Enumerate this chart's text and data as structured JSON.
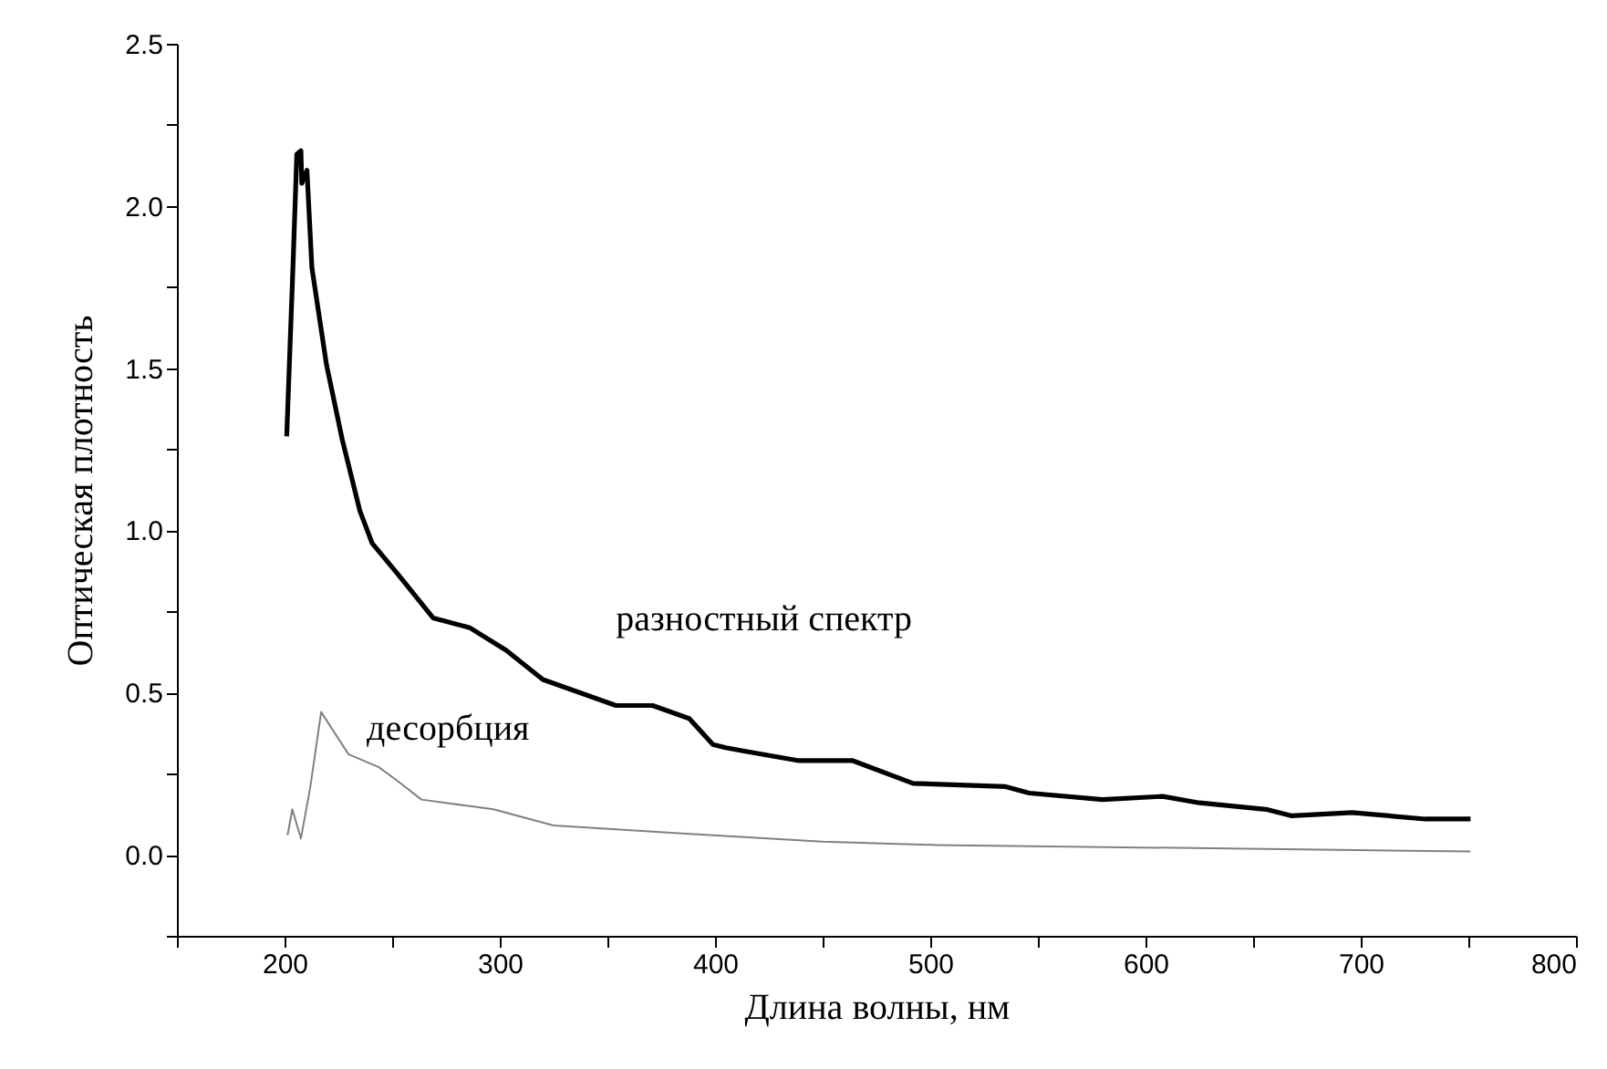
{
  "chart_data": {
    "type": "line",
    "xlabel": "Длина волны, нм",
    "ylabel": "Оптическая плотность",
    "xlim": [
      150,
      800
    ],
    "ylim": [
      -0.25,
      2.5
    ],
    "xticks": [
      {
        "value": 150,
        "label": null
      },
      200,
      {
        "value": 250,
        "label": null
      },
      300,
      {
        "value": 350,
        "label": null
      },
      400,
      {
        "value": 450,
        "label": null
      },
      500,
      {
        "value": 550,
        "label": null
      },
      600,
      {
        "value": 650,
        "label": null
      },
      700,
      {
        "value": 750,
        "label": null
      },
      800
    ],
    "yticks": [
      {
        "value": -0.25,
        "label": null
      },
      {
        "value": 0,
        "label": "0.0"
      },
      {
        "value": 0.25,
        "label": null
      },
      {
        "value": 0.5,
        "label": "0.5"
      },
      {
        "value": 0.75,
        "label": null
      },
      {
        "value": 1,
        "label": "1.0"
      },
      {
        "value": 1.25,
        "label": null
      },
      {
        "value": 1.5,
        "label": "1.5"
      },
      {
        "value": 1.75,
        "label": null
      },
      {
        "value": 2,
        "label": "2.0"
      },
      {
        "value": 2.25,
        "label": null
      },
      {
        "value": 2.5,
        "label": "2.5"
      }
    ],
    "line_style": "solid",
    "series": [
      {
        "name": "разностный спектр",
        "color": "#000000",
        "x": [
          201,
          204,
          205.7,
          207.6,
          208,
          210.4,
          212.7,
          219.5,
          226.8,
          235,
          240.7,
          252,
          269,
          286,
          303,
          320,
          337,
          354,
          371,
          388,
          399,
          405,
          413,
          439,
          464,
          492,
          535,
          546,
          580,
          608,
          625,
          656,
          668,
          696,
          730,
          751
        ],
        "values": [
          1.29,
          1.83,
          2.16,
          2.17,
          2.07,
          2.11,
          1.81,
          1.51,
          1.28,
          1.06,
          0.96,
          0.87,
          0.73,
          0.7,
          0.63,
          0.54,
          0.5,
          0.46,
          0.46,
          0.42,
          0.34,
          0.33,
          0.32,
          0.29,
          0.29,
          0.22,
          0.21,
          0.19,
          0.17,
          0.18,
          0.16,
          0.14,
          0.12,
          0.13,
          0.11,
          0.11
        ]
      },
      {
        "name": "десорбция",
        "color": "#808080",
        "x": [
          201.4,
          203.6,
          207.6,
          212,
          217,
          229.7,
          243.8,
          252,
          263.6,
          297,
          325,
          399,
          450,
          503,
          751
        ],
        "values": [
          0.06,
          0.14,
          0.05,
          0.21,
          0.44,
          0.31,
          0.27,
          0.23,
          0.17,
          0.14,
          0.09,
          0.06,
          0.04,
          0.03,
          0.01
        ]
      }
    ]
  }
}
